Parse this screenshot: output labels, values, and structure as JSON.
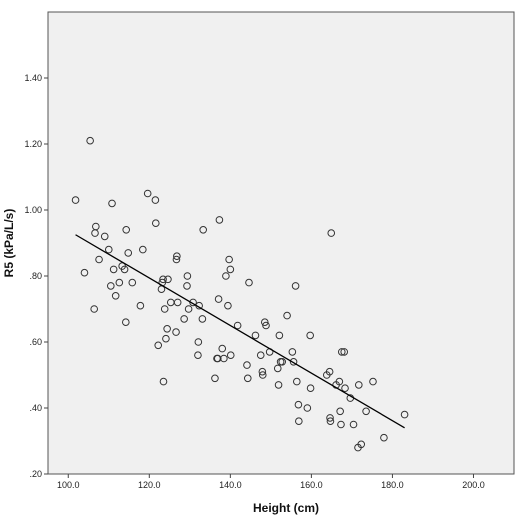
{
  "chart_data": {
    "type": "scatter",
    "title": "",
    "xlabel": "Height (cm)",
    "ylabel": "R5 (kPa/L/s)",
    "xlim": [
      95,
      210
    ],
    "ylim": [
      0.2,
      1.6
    ],
    "x_ticks": [
      100,
      120,
      140,
      160,
      180,
      200
    ],
    "x_tick_labels": [
      "100.0",
      "120.0",
      "140.0",
      "160.0",
      "180.0",
      "200.0"
    ],
    "y_ticks": [
      0.2,
      0.4,
      0.6,
      0.8,
      1.0,
      1.2,
      1.4
    ],
    "y_tick_labels": [
      ".20",
      ".40",
      ".60",
      ".80",
      "1.00",
      "1.20",
      "1.40"
    ],
    "grid": false,
    "legend": "none",
    "colors": {
      "plot_bg": "#f0f0f0",
      "marker_stroke": "#333333",
      "line": "#000000"
    },
    "fit_line": {
      "x": [
        101.8,
        183.0
      ],
      "y": [
        0.925,
        0.34
      ]
    },
    "points": [
      [
        101.8,
        1.03
      ],
      [
        104.0,
        0.81
      ],
      [
        105.4,
        1.21
      ],
      [
        106.4,
        0.7
      ],
      [
        106.6,
        0.93
      ],
      [
        106.8,
        0.95
      ],
      [
        107.6,
        0.85
      ],
      [
        109.0,
        0.92
      ],
      [
        110.0,
        0.88
      ],
      [
        110.5,
        0.77
      ],
      [
        110.8,
        1.02
      ],
      [
        111.2,
        0.82
      ],
      [
        111.7,
        0.74
      ],
      [
        112.6,
        0.78
      ],
      [
        113.3,
        0.83
      ],
      [
        113.9,
        0.82
      ],
      [
        114.2,
        0.66
      ],
      [
        114.3,
        0.94
      ],
      [
        114.8,
        0.87
      ],
      [
        115.8,
        0.78
      ],
      [
        117.8,
        0.71
      ],
      [
        118.4,
        0.88
      ],
      [
        119.6,
        1.05
      ],
      [
        121.5,
        1.03
      ],
      [
        121.6,
        0.96
      ],
      [
        122.2,
        0.59
      ],
      [
        123.0,
        0.76
      ],
      [
        123.2,
        0.78
      ],
      [
        123.4,
        0.79
      ],
      [
        123.5,
        0.48
      ],
      [
        123.8,
        0.7
      ],
      [
        124.1,
        0.61
      ],
      [
        124.4,
        0.64
      ],
      [
        124.6,
        0.79
      ],
      [
        125.3,
        0.72
      ],
      [
        126.6,
        0.63
      ],
      [
        126.7,
        0.85
      ],
      [
        126.8,
        0.86
      ],
      [
        127.0,
        0.72
      ],
      [
        128.6,
        0.67
      ],
      [
        129.3,
        0.77
      ],
      [
        129.4,
        0.8
      ],
      [
        129.7,
        0.7
      ],
      [
        130.8,
        0.72
      ],
      [
        132.0,
        0.56
      ],
      [
        132.1,
        0.6
      ],
      [
        132.3,
        0.71
      ],
      [
        133.1,
        0.67
      ],
      [
        133.3,
        0.94
      ],
      [
        136.2,
        0.49
      ],
      [
        136.7,
        0.55
      ],
      [
        136.9,
        0.55
      ],
      [
        137.1,
        0.73
      ],
      [
        137.3,
        0.97
      ],
      [
        138.0,
        0.58
      ],
      [
        138.4,
        0.55
      ],
      [
        138.9,
        0.8
      ],
      [
        139.4,
        0.71
      ],
      [
        139.7,
        0.85
      ],
      [
        140.0,
        0.82
      ],
      [
        140.1,
        0.56
      ],
      [
        141.8,
        0.65
      ],
      [
        144.1,
        0.53
      ],
      [
        144.3,
        0.49
      ],
      [
        144.6,
        0.78
      ],
      [
        146.2,
        0.62
      ],
      [
        147.5,
        0.56
      ],
      [
        147.9,
        0.51
      ],
      [
        148.0,
        0.5
      ],
      [
        148.5,
        0.66
      ],
      [
        148.8,
        0.65
      ],
      [
        149.7,
        0.57
      ],
      [
        151.7,
        0.52
      ],
      [
        151.9,
        0.47
      ],
      [
        152.1,
        0.62
      ],
      [
        152.4,
        0.54
      ],
      [
        152.8,
        0.54
      ],
      [
        154.0,
        0.68
      ],
      [
        155.3,
        0.57
      ],
      [
        155.6,
        0.54
      ],
      [
        156.1,
        0.77
      ],
      [
        156.4,
        0.48
      ],
      [
        156.8,
        0.41
      ],
      [
        156.9,
        0.36
      ],
      [
        159.0,
        0.4
      ],
      [
        159.7,
        0.62
      ],
      [
        159.8,
        0.46
      ],
      [
        163.8,
        0.5
      ],
      [
        164.5,
        0.51
      ],
      [
        164.6,
        0.37
      ],
      [
        164.7,
        0.36
      ],
      [
        164.9,
        0.93
      ],
      [
        166.1,
        0.47
      ],
      [
        166.9,
        0.48
      ],
      [
        167.1,
        0.39
      ],
      [
        167.3,
        0.35
      ],
      [
        167.5,
        0.57
      ],
      [
        168.1,
        0.57
      ],
      [
        168.3,
        0.46
      ],
      [
        169.6,
        0.43
      ],
      [
        170.4,
        0.35
      ],
      [
        171.5,
        0.28
      ],
      [
        171.7,
        0.47
      ],
      [
        172.3,
        0.29
      ],
      [
        173.5,
        0.39
      ],
      [
        175.2,
        0.48
      ],
      [
        177.9,
        0.31
      ],
      [
        183.0,
        0.38
      ]
    ]
  }
}
